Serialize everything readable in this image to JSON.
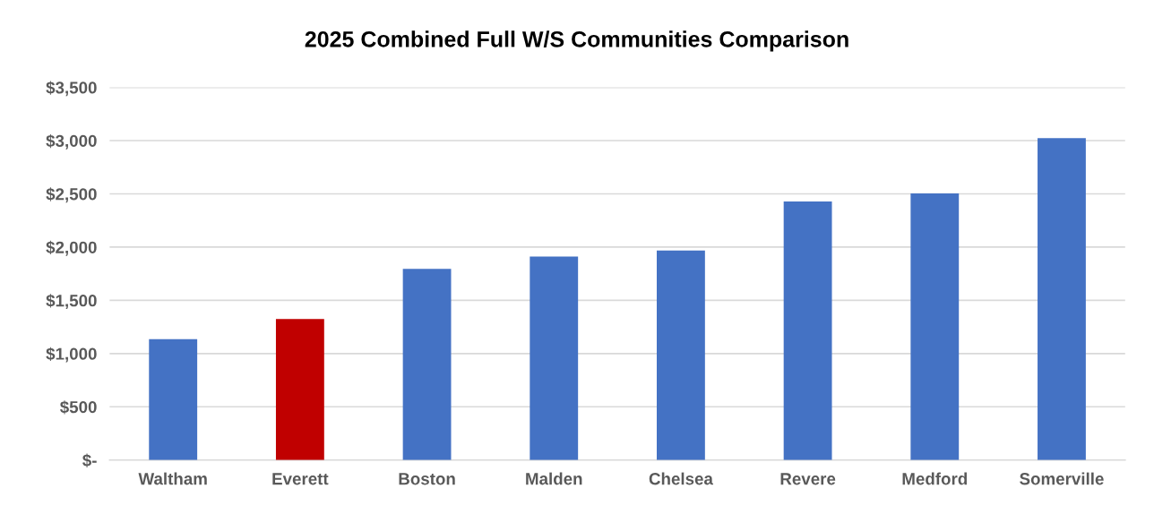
{
  "chart_data": {
    "type": "bar",
    "title": "2025 Combined Full W/S Communities Comparison",
    "categories": [
      "Waltham",
      "Everett",
      "Boston",
      "Malden",
      "Chelsea",
      "Revere",
      "Medford",
      "Somerville"
    ],
    "values": [
      1135,
      1324,
      1795,
      1911,
      1968,
      2428,
      2504,
      3023
    ],
    "colors": [
      "#4472c4",
      "#c00000",
      "#4472c4",
      "#4472c4",
      "#4472c4",
      "#4472c4",
      "#4472c4",
      "#4472c4"
    ],
    "ylim": [
      0,
      3500
    ],
    "yticks": [
      {
        "value": 0,
        "label": "$-"
      },
      {
        "value": 500,
        "label": "$500"
      },
      {
        "value": 1000,
        "label": "$1,000"
      },
      {
        "value": 1500,
        "label": "$1,500"
      },
      {
        "value": 2000,
        "label": "$2,000"
      },
      {
        "value": 2500,
        "label": "$2,500"
      },
      {
        "value": 3000,
        "label": "$3,000"
      },
      {
        "value": 3500,
        "label": "$3,500"
      }
    ],
    "grid": "y",
    "legend": false
  }
}
